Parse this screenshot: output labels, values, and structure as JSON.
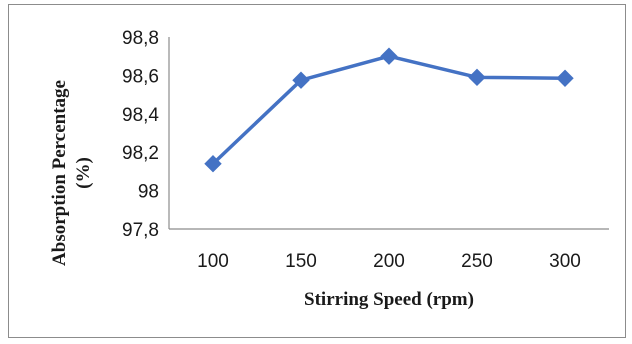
{
  "chart_data": {
    "type": "line",
    "title": "",
    "xlabel": "Stirring  Speed (rpm)",
    "ylabel_lines": [
      "Absorption Percentage",
      "(%)"
    ],
    "categories": [
      "100",
      "150",
      "200",
      "250",
      "300"
    ],
    "series": [
      {
        "values": [
          98.14,
          98.575,
          98.7,
          98.59,
          98.585
        ],
        "color": "#4472C4",
        "marker": "diamond"
      }
    ],
    "ylim": [
      97.8,
      98.8
    ],
    "yticks": [
      97.8,
      98.0,
      98.2,
      98.4,
      98.6,
      98.8
    ],
    "ytick_labels": [
      "97,8",
      "98",
      "98,2",
      "98,4",
      "98,6",
      "98,8"
    ],
    "grid": false,
    "legend": "none"
  }
}
